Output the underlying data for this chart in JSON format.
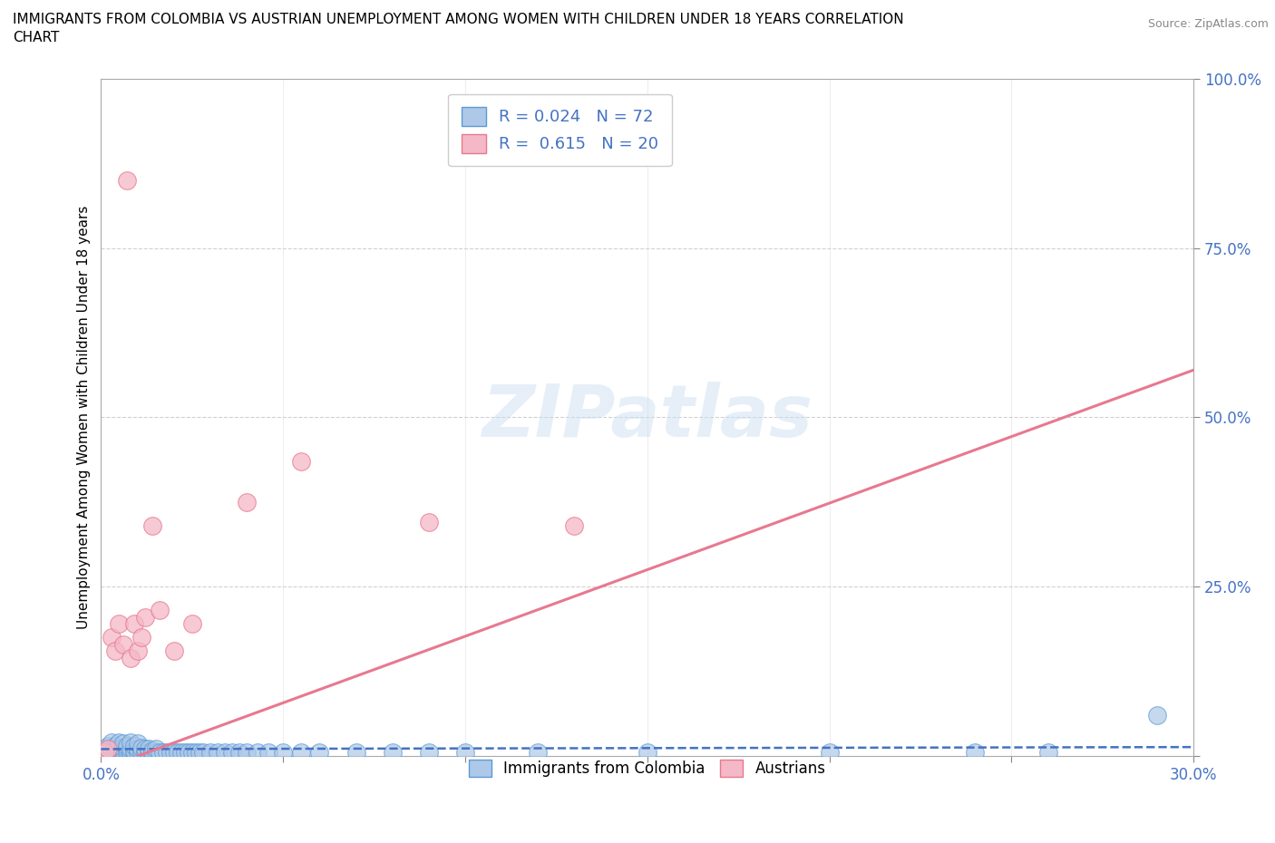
{
  "title_line1": "IMMIGRANTS FROM COLOMBIA VS AUSTRIAN UNEMPLOYMENT AMONG WOMEN WITH CHILDREN UNDER 18 YEARS CORRELATION",
  "title_line2": "CHART",
  "source": "Source: ZipAtlas.com",
  "ylabel": "Unemployment Among Women with Children Under 18 years",
  "xlim": [
    0.0,
    0.3
  ],
  "ylim": [
    0.0,
    1.0
  ],
  "xticks": [
    0.0,
    0.05,
    0.1,
    0.15,
    0.2,
    0.25,
    0.3
  ],
  "yticks": [
    0.0,
    0.25,
    0.5,
    0.75,
    1.0
  ],
  "xtick_labels": [
    "0.0%",
    "",
    "",
    "",
    "",
    "",
    "30.0%"
  ],
  "ytick_labels": [
    "",
    "25.0%",
    "50.0%",
    "75.0%",
    "100.0%"
  ],
  "blue_R": 0.024,
  "blue_N": 72,
  "pink_R": 0.615,
  "pink_N": 20,
  "blue_color": "#adc8e8",
  "pink_color": "#f4b8c8",
  "blue_edge_color": "#5b9bd5",
  "pink_edge_color": "#e8788a",
  "blue_line_color": "#4472C4",
  "pink_line_color": "#e87890",
  "watermark": "ZIPatlas",
  "blue_trend_y0": 0.01,
  "blue_trend_y1": 0.013,
  "pink_trend_y0": -0.02,
  "pink_trend_y1": 0.57,
  "blue_x": [
    0.001,
    0.002,
    0.002,
    0.003,
    0.003,
    0.003,
    0.004,
    0.004,
    0.004,
    0.005,
    0.005,
    0.005,
    0.006,
    0.006,
    0.006,
    0.006,
    0.007,
    0.007,
    0.007,
    0.008,
    0.008,
    0.008,
    0.009,
    0.009,
    0.009,
    0.01,
    0.01,
    0.01,
    0.011,
    0.011,
    0.012,
    0.012,
    0.013,
    0.013,
    0.014,
    0.014,
    0.015,
    0.015,
    0.016,
    0.017,
    0.018,
    0.019,
    0.02,
    0.021,
    0.022,
    0.023,
    0.024,
    0.025,
    0.026,
    0.027,
    0.028,
    0.03,
    0.032,
    0.034,
    0.036,
    0.038,
    0.04,
    0.043,
    0.046,
    0.05,
    0.055,
    0.06,
    0.07,
    0.08,
    0.09,
    0.1,
    0.12,
    0.15,
    0.2,
    0.24,
    0.26,
    0.29
  ],
  "blue_y": [
    0.005,
    0.01,
    0.015,
    0.005,
    0.01,
    0.02,
    0.005,
    0.01,
    0.015,
    0.005,
    0.01,
    0.02,
    0.005,
    0.008,
    0.012,
    0.018,
    0.005,
    0.01,
    0.015,
    0.005,
    0.01,
    0.02,
    0.005,
    0.008,
    0.015,
    0.005,
    0.01,
    0.018,
    0.005,
    0.012,
    0.005,
    0.01,
    0.005,
    0.01,
    0.005,
    0.008,
    0.005,
    0.01,
    0.005,
    0.005,
    0.005,
    0.005,
    0.005,
    0.005,
    0.005,
    0.005,
    0.005,
    0.005,
    0.005,
    0.005,
    0.005,
    0.005,
    0.005,
    0.005,
    0.005,
    0.005,
    0.005,
    0.005,
    0.005,
    0.005,
    0.005,
    0.005,
    0.005,
    0.005,
    0.005,
    0.005,
    0.005,
    0.005,
    0.005,
    0.005,
    0.005,
    0.06
  ],
  "blue_y_offsets": [
    0,
    0,
    0,
    0,
    0,
    0,
    0,
    0,
    0,
    0,
    0,
    0,
    0,
    0,
    0,
    0,
    0,
    0.17,
    0,
    0.15,
    0,
    0,
    0,
    0,
    0,
    0,
    0,
    0,
    0,
    0,
    0,
    0,
    0,
    0,
    0,
    0,
    0,
    0,
    0,
    0,
    0,
    0,
    0,
    0,
    0,
    0,
    0,
    0,
    0,
    0,
    0,
    0,
    0,
    0,
    0,
    0,
    0,
    0,
    0,
    0,
    0,
    0,
    0,
    0,
    0,
    0,
    0,
    0,
    0,
    0,
    0,
    0
  ],
  "pink_x": [
    0.001,
    0.002,
    0.003,
    0.004,
    0.005,
    0.006,
    0.007,
    0.008,
    0.009,
    0.01,
    0.011,
    0.012,
    0.014,
    0.016,
    0.02,
    0.025,
    0.04,
    0.055,
    0.09,
    0.13
  ],
  "pink_y": [
    0.005,
    0.01,
    0.175,
    0.155,
    0.195,
    0.165,
    0.85,
    0.145,
    0.195,
    0.155,
    0.175,
    0.205,
    0.34,
    0.215,
    0.155,
    0.195,
    0.375,
    0.435,
    0.345,
    0.34
  ]
}
